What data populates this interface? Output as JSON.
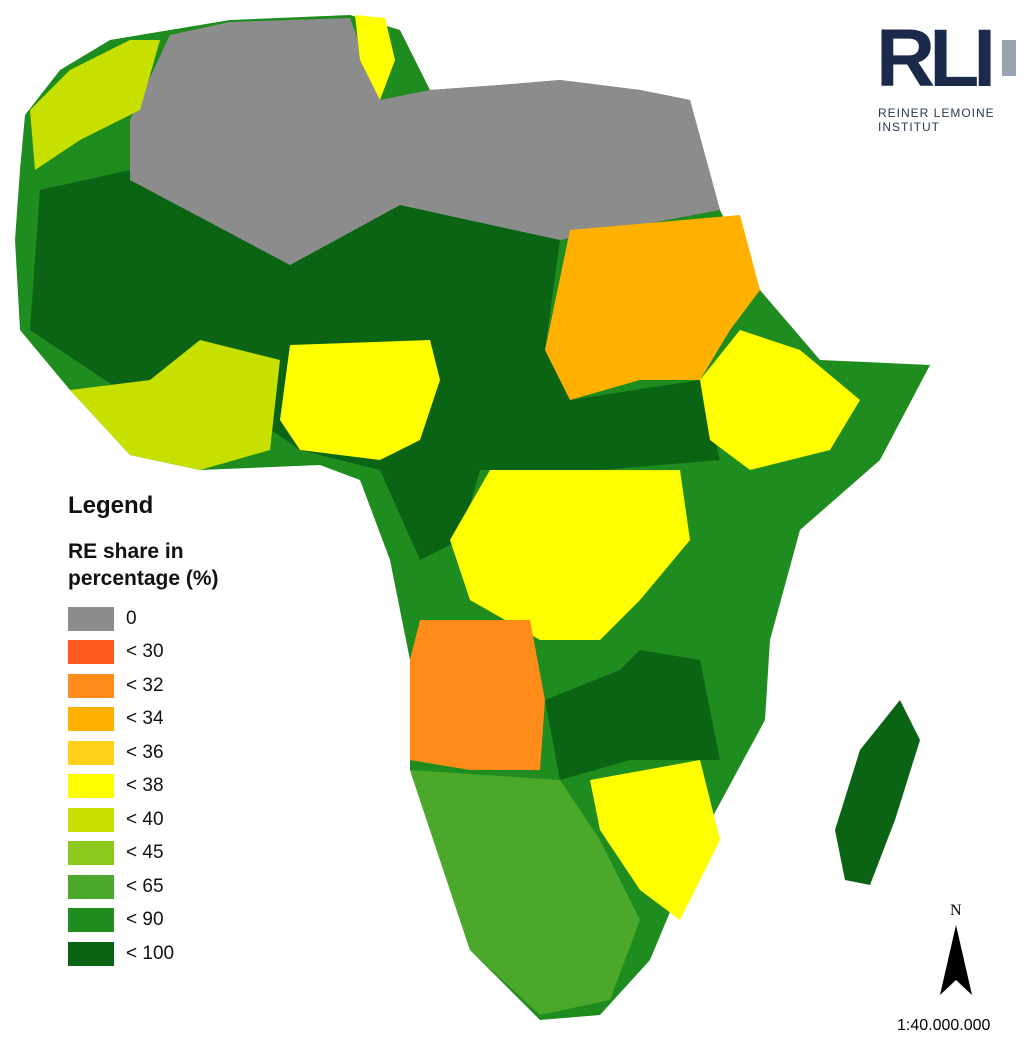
{
  "logo": {
    "mark": "RLI",
    "name": "REINER LEMOINE",
    "subname": "INSTITUT"
  },
  "legend": {
    "title": "Legend",
    "subtitle": "RE share in percentage (%)",
    "items": [
      {
        "label": "0",
        "color": "#8c8c8c"
      },
      {
        "label": "< 30",
        "color": "#ff5a1e"
      },
      {
        "label": "< 32",
        "color": "#ff8c1a"
      },
      {
        "label": "< 34",
        "color": "#ffb000"
      },
      {
        "label": "< 36",
        "color": "#ffd11a"
      },
      {
        "label": "< 38",
        "color": "#ffff00"
      },
      {
        "label": "< 40",
        "color": "#c8e000"
      },
      {
        "label": "< 45",
        "color": "#8cc81e"
      },
      {
        "label": "< 65",
        "color": "#4ca82a"
      },
      {
        "label": "< 90",
        "color": "#1e8c1e"
      },
      {
        "label": "< 100",
        "color": "#0a6414"
      }
    ]
  },
  "north": "N",
  "scale": "1:40.000.000"
}
